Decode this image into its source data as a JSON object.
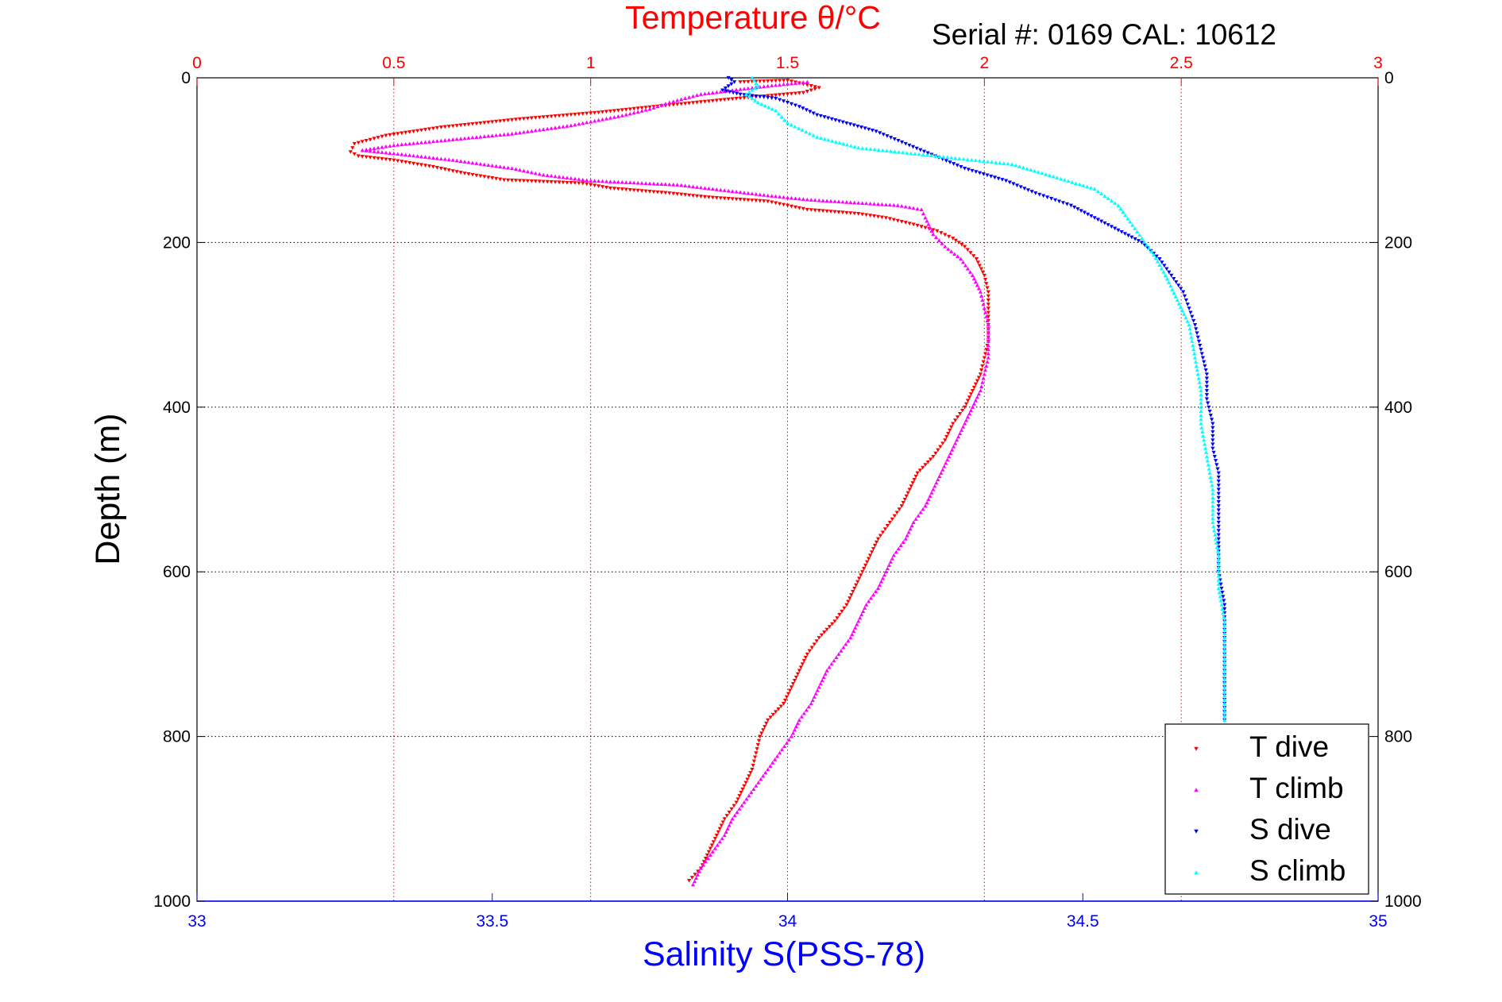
{
  "chart_data": {
    "type": "scatter",
    "title": "Serial #: 0169 CAL: 10612",
    "top_axis": {
      "label": "Temperature θ/°C",
      "range": [
        0,
        3
      ],
      "ticks": [
        0,
        0.5,
        1,
        1.5,
        2,
        2.5,
        3
      ],
      "color": "#ff0000"
    },
    "bottom_axis": {
      "label": "Salinity S(PSS-78)",
      "range": [
        33,
        35
      ],
      "ticks": [
        33,
        33.5,
        34,
        34.5,
        35
      ],
      "color": "#0000ff"
    },
    "y_axis": {
      "label": "Depth (m)",
      "range": [
        0,
        1000
      ],
      "reversed": true,
      "ticks": [
        0,
        200,
        400,
        600,
        800,
        1000
      ]
    },
    "grid": true,
    "legend_position": "bottom-right",
    "series": [
      {
        "name": "T dive",
        "axis": "top",
        "color": "#ff0000",
        "marker": "triangle-down",
        "points": [
          [
            1.38,
            5
          ],
          [
            1.5,
            3
          ],
          [
            1.58,
            12
          ],
          [
            1.54,
            18
          ],
          [
            1.35,
            26
          ],
          [
            1.18,
            34
          ],
          [
            1.02,
            42
          ],
          [
            0.82,
            50
          ],
          [
            0.62,
            60
          ],
          [
            0.48,
            70
          ],
          [
            0.4,
            80
          ],
          [
            0.39,
            90
          ],
          [
            0.41,
            95
          ],
          [
            0.5,
            100
          ],
          [
            0.6,
            108
          ],
          [
            0.68,
            116
          ],
          [
            0.78,
            124
          ],
          [
            0.98,
            128
          ],
          [
            1.05,
            134
          ],
          [
            1.2,
            140
          ],
          [
            1.3,
            145
          ],
          [
            1.45,
            150
          ],
          [
            1.55,
            160
          ],
          [
            1.68,
            165
          ],
          [
            1.75,
            170
          ],
          [
            1.82,
            178
          ],
          [
            1.88,
            186
          ],
          [
            1.92,
            195
          ],
          [
            1.95,
            205
          ],
          [
            1.98,
            220
          ],
          [
            2.0,
            240
          ],
          [
            2.01,
            260
          ],
          [
            2.01,
            280
          ],
          [
            2.01,
            300
          ],
          [
            2.01,
            320
          ],
          [
            2.0,
            340
          ],
          [
            1.99,
            360
          ],
          [
            1.97,
            380
          ],
          [
            1.95,
            400
          ],
          [
            1.92,
            420
          ],
          [
            1.9,
            440
          ],
          [
            1.87,
            460
          ],
          [
            1.83,
            480
          ],
          [
            1.81,
            500
          ],
          [
            1.79,
            520
          ],
          [
            1.76,
            540
          ],
          [
            1.73,
            560
          ],
          [
            1.71,
            580
          ],
          [
            1.69,
            600
          ],
          [
            1.67,
            620
          ],
          [
            1.65,
            640
          ],
          [
            1.62,
            660
          ],
          [
            1.58,
            680
          ],
          [
            1.55,
            700
          ],
          [
            1.53,
            720
          ],
          [
            1.51,
            740
          ],
          [
            1.49,
            760
          ],
          [
            1.45,
            780
          ],
          [
            1.43,
            800
          ],
          [
            1.42,
            820
          ],
          [
            1.41,
            840
          ],
          [
            1.39,
            860
          ],
          [
            1.37,
            880
          ],
          [
            1.34,
            900
          ],
          [
            1.32,
            920
          ],
          [
            1.3,
            940
          ],
          [
            1.28,
            960
          ],
          [
            1.25,
            975
          ]
        ]
      },
      {
        "name": "T climb",
        "axis": "top",
        "color": "#ff00ff",
        "marker": "triangle-up",
        "points": [
          [
            1.26,
            980
          ],
          [
            1.28,
            960
          ],
          [
            1.31,
            940
          ],
          [
            1.34,
            920
          ],
          [
            1.36,
            900
          ],
          [
            1.39,
            880
          ],
          [
            1.42,
            860
          ],
          [
            1.45,
            840
          ],
          [
            1.48,
            820
          ],
          [
            1.51,
            800
          ],
          [
            1.53,
            780
          ],
          [
            1.56,
            760
          ],
          [
            1.58,
            740
          ],
          [
            1.6,
            720
          ],
          [
            1.63,
            700
          ],
          [
            1.66,
            680
          ],
          [
            1.68,
            660
          ],
          [
            1.7,
            640
          ],
          [
            1.73,
            620
          ],
          [
            1.75,
            600
          ],
          [
            1.77,
            580
          ],
          [
            1.8,
            560
          ],
          [
            1.82,
            540
          ],
          [
            1.85,
            520
          ],
          [
            1.87,
            500
          ],
          [
            1.89,
            480
          ],
          [
            1.91,
            460
          ],
          [
            1.93,
            440
          ],
          [
            1.95,
            420
          ],
          [
            1.97,
            400
          ],
          [
            1.99,
            380
          ],
          [
            2.0,
            360
          ],
          [
            2.01,
            340
          ],
          [
            2.01,
            320
          ],
          [
            2.01,
            300
          ],
          [
            2.0,
            280
          ],
          [
            1.99,
            260
          ],
          [
            1.97,
            240
          ],
          [
            1.94,
            220
          ],
          [
            1.9,
            205
          ],
          [
            1.87,
            190
          ],
          [
            1.85,
            170
          ],
          [
            1.84,
            160
          ],
          [
            1.78,
            155
          ],
          [
            1.55,
            148
          ],
          [
            1.45,
            143
          ],
          [
            1.22,
            130
          ],
          [
            1.0,
            125
          ],
          [
            0.88,
            118
          ],
          [
            0.8,
            110
          ],
          [
            0.65,
            100
          ],
          [
            0.5,
            92
          ],
          [
            0.42,
            88
          ],
          [
            0.5,
            82
          ],
          [
            0.65,
            75
          ],
          [
            0.8,
            68
          ],
          [
            0.95,
            58
          ],
          [
            1.08,
            46
          ],
          [
            1.15,
            38
          ],
          [
            1.2,
            30
          ],
          [
            1.28,
            20
          ],
          [
            1.38,
            14
          ],
          [
            1.45,
            10
          ],
          [
            1.55,
            5
          ]
        ]
      },
      {
        "name": "S dive",
        "axis": "bottom",
        "color": "#0000ff",
        "marker": "triangle-down",
        "points": [
          [
            33.9,
            0
          ],
          [
            33.91,
            5
          ],
          [
            33.89,
            15
          ],
          [
            33.92,
            20
          ],
          [
            33.98,
            25
          ],
          [
            34.02,
            35
          ],
          [
            34.05,
            45
          ],
          [
            34.1,
            55
          ],
          [
            34.15,
            65
          ],
          [
            34.2,
            80
          ],
          [
            34.25,
            95
          ],
          [
            34.3,
            110
          ],
          [
            34.37,
            125
          ],
          [
            34.42,
            140
          ],
          [
            34.48,
            155
          ],
          [
            34.52,
            170
          ],
          [
            34.56,
            185
          ],
          [
            34.6,
            200
          ],
          [
            34.63,
            220
          ],
          [
            34.65,
            240
          ],
          [
            34.67,
            260
          ],
          [
            34.68,
            280
          ],
          [
            34.69,
            300
          ],
          [
            34.7,
            330
          ],
          [
            34.71,
            360
          ],
          [
            34.71,
            390
          ],
          [
            34.72,
            420
          ],
          [
            34.72,
            450
          ],
          [
            34.73,
            480
          ],
          [
            34.73,
            520
          ],
          [
            34.73,
            560
          ],
          [
            34.73,
            600
          ],
          [
            34.74,
            640
          ],
          [
            34.74,
            680
          ],
          [
            34.74,
            720
          ],
          [
            34.74,
            760
          ],
          [
            34.74,
            780
          ]
        ]
      },
      {
        "name": "S climb",
        "axis": "bottom",
        "color": "#00ffff",
        "marker": "triangle-up",
        "points": [
          [
            34.74,
            780
          ],
          [
            34.74,
            740
          ],
          [
            34.74,
            700
          ],
          [
            34.74,
            660
          ],
          [
            34.73,
            620
          ],
          [
            34.73,
            580
          ],
          [
            34.72,
            540
          ],
          [
            34.72,
            500
          ],
          [
            34.71,
            460
          ],
          [
            34.7,
            420
          ],
          [
            34.7,
            380
          ],
          [
            34.69,
            340
          ],
          [
            34.68,
            300
          ],
          [
            34.66,
            270
          ],
          [
            34.64,
            240
          ],
          [
            34.62,
            215
          ],
          [
            34.6,
            195
          ],
          [
            34.58,
            175
          ],
          [
            34.56,
            155
          ],
          [
            34.52,
            135
          ],
          [
            34.45,
            120
          ],
          [
            34.38,
            105
          ],
          [
            34.25,
            95
          ],
          [
            34.12,
            85
          ],
          [
            34.05,
            72
          ],
          [
            34.0,
            55
          ],
          [
            33.98,
            40
          ],
          [
            33.95,
            30
          ],
          [
            33.93,
            20
          ],
          [
            33.95,
            10
          ],
          [
            33.94,
            0
          ]
        ]
      }
    ]
  }
}
